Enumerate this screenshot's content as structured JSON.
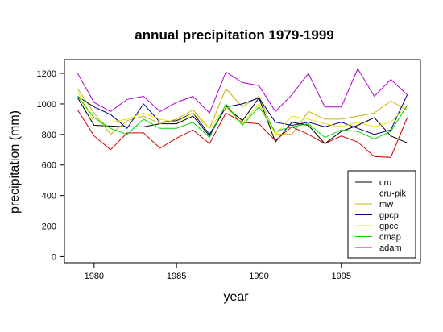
{
  "chart_data": {
    "type": "line",
    "title": "annual precipitation 1979-1999",
    "xlabel": "year",
    "ylabel": "precipitation (mm)",
    "xlim": [
      1978.2,
      1999.8
    ],
    "ylim": [
      -40,
      1290
    ],
    "x_ticks": [
      1980,
      1985,
      1990,
      1995
    ],
    "y_ticks": [
      0,
      200,
      400,
      600,
      800,
      1000,
      1200
    ],
    "legend_position": "bottom-right",
    "x": [
      1979,
      1980,
      1981,
      1982,
      1983,
      1984,
      1985,
      1986,
      1987,
      1988,
      1989,
      1990,
      1991,
      1992,
      1993,
      1994,
      1995,
      1996,
      1997,
      1998,
      1999
    ],
    "series": [
      {
        "name": "cru",
        "color": "#000000",
        "values": [
          1040,
          860,
          855,
          850,
          850,
          870,
          870,
          920,
          790,
          980,
          890,
          1040,
          750,
          880,
          860,
          740,
          820,
          860,
          910,
          790,
          745
        ]
      },
      {
        "name": "cru-pik",
        "color": "#cc0000",
        "values": [
          960,
          790,
          700,
          810,
          810,
          710,
          775,
          830,
          740,
          940,
          880,
          870,
          760,
          850,
          800,
          740,
          790,
          750,
          655,
          650,
          910
        ]
      },
      {
        "name": "mw",
        "color": "#c8b400",
        "values": [
          1100,
          940,
          800,
          890,
          920,
          870,
          900,
          960,
          840,
          1100,
          980,
          1050,
          800,
          800,
          950,
          900,
          900,
          920,
          940,
          1020,
          960
        ]
      },
      {
        "name": "gpcp",
        "color": "#000080",
        "values": [
          1050,
          980,
          930,
          840,
          1000,
          880,
          890,
          940,
          800,
          980,
          1000,
          1040,
          880,
          860,
          880,
          850,
          880,
          840,
          800,
          830,
          1060
        ]
      },
      {
        "name": "gpcc",
        "color": "#e8e800",
        "values": [
          1080,
          880,
          880,
          900,
          940,
          900,
          880,
          940,
          840,
          980,
          870,
          1000,
          800,
          920,
          900,
          870,
          850,
          880,
          850,
          880,
          990
        ]
      },
      {
        "name": "cmap",
        "color": "#00d800",
        "values": [
          1050,
          910,
          840,
          800,
          900,
          840,
          840,
          880,
          780,
          1000,
          860,
          980,
          820,
          850,
          870,
          780,
          830,
          820,
          770,
          820,
          990
        ]
      },
      {
        "name": "adam",
        "color": "#b000d0",
        "values": [
          1200,
          1010,
          950,
          1030,
          1050,
          950,
          1010,
          1050,
          940,
          1210,
          1140,
          1120,
          950,
          1060,
          1200,
          980,
          980,
          1230,
          1050,
          1160,
          1060
        ]
      }
    ]
  }
}
